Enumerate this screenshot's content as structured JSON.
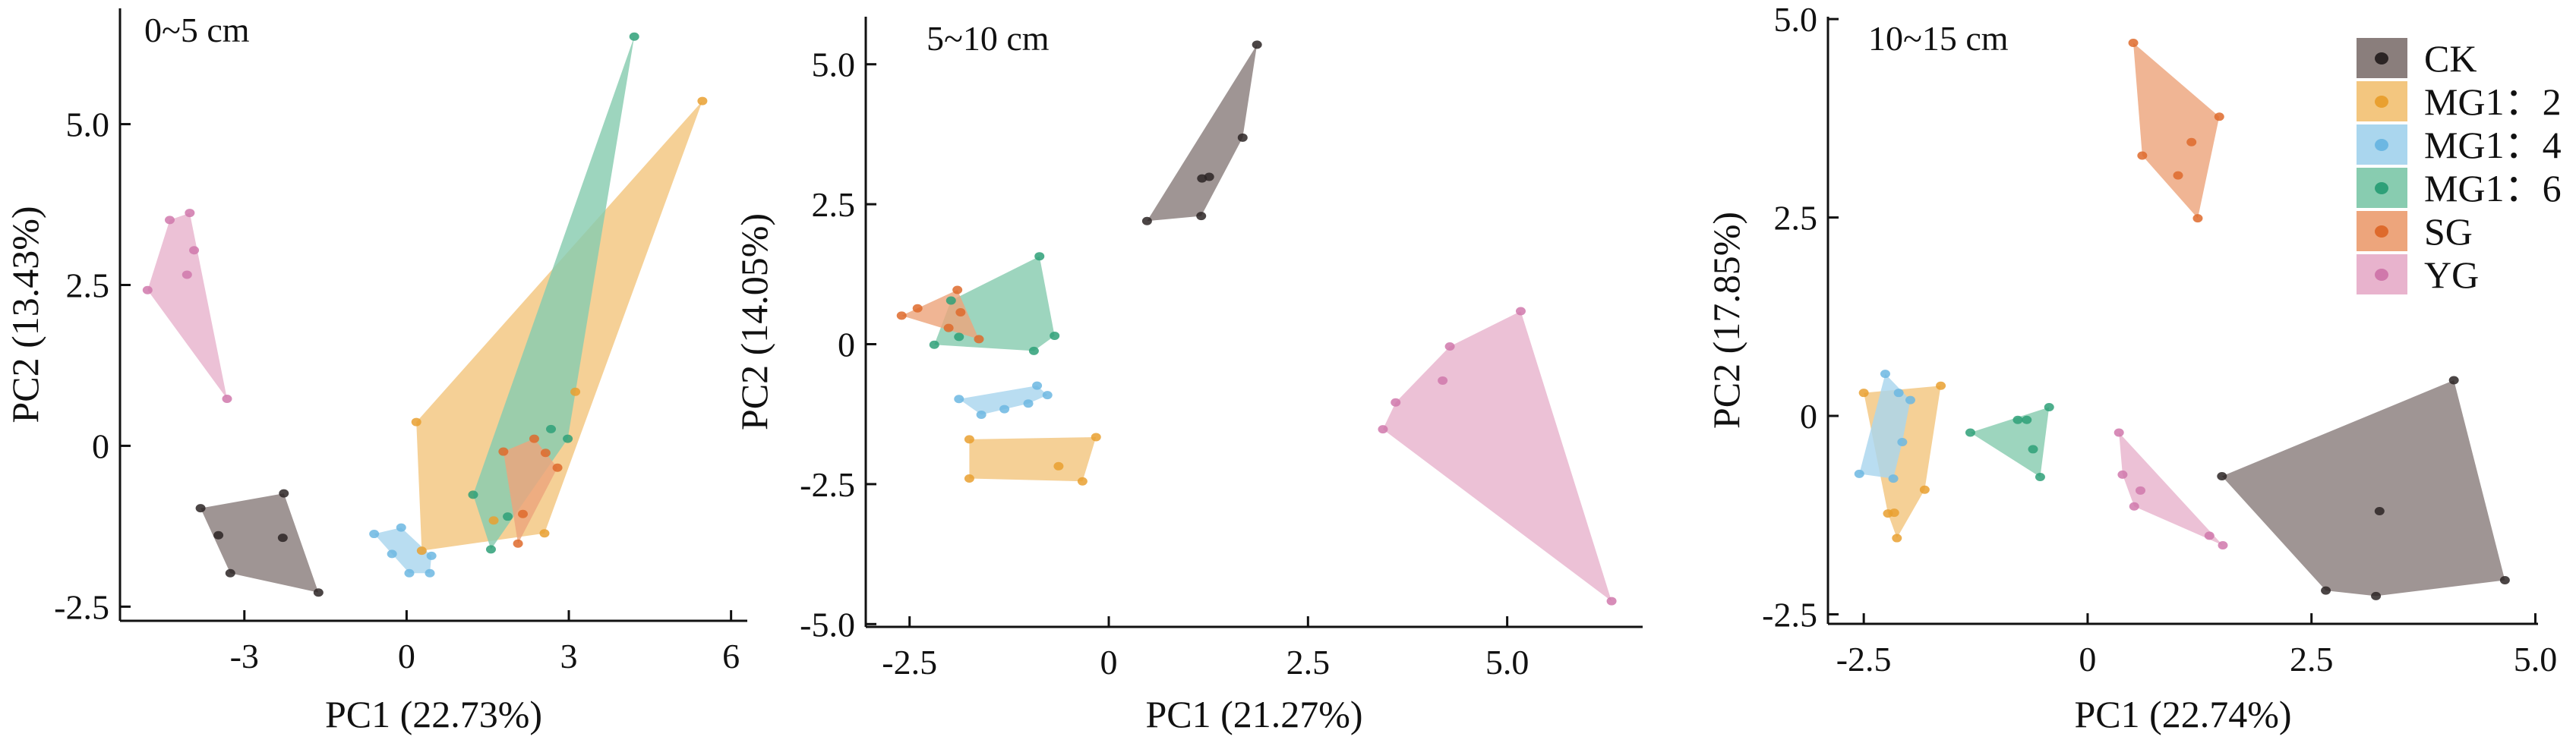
{
  "chart_data": [
    {
      "type": "scatter",
      "title": "0~5 cm",
      "xlabel": "PC1 (22.73%)",
      "ylabel": "PC2 (13.43%)",
      "xlim": [
        -5.3,
        6.3
      ],
      "ylim": [
        -2.72,
        6.8
      ],
      "xticks": [
        {
          "v": -3,
          "label": "-3"
        },
        {
          "v": 0,
          "label": "0"
        },
        {
          "v": 3,
          "label": "3"
        },
        {
          "v": 6,
          "label": "6"
        }
      ],
      "yticks": [
        {
          "v": 5,
          "label": "5.0"
        },
        {
          "v": 2.5,
          "label": "2.5"
        },
        {
          "v": 0,
          "label": "0"
        },
        {
          "v": -2.5,
          "label": "-2.5"
        }
      ],
      "series": [
        {
          "name": "CK",
          "points": [
            [
              -3.81,
              -0.97
            ],
            [
              -2.27,
              -0.74
            ],
            [
              -3.48,
              -1.39
            ],
            [
              -2.29,
              -1.43
            ],
            [
              -3.26,
              -1.98
            ],
            [
              -1.63,
              -2.28
            ]
          ]
        },
        {
          "name": "MG1：2",
          "points": [
            [
              0.18,
              0.37
            ],
            [
              5.47,
              5.36
            ],
            [
              3.12,
              0.84
            ],
            [
              2.55,
              -1.36
            ],
            [
              0.28,
              -1.63
            ],
            [
              1.61,
              -1.16
            ]
          ]
        },
        {
          "name": "MG1：4",
          "points": [
            [
              -0.6,
              -1.37
            ],
            [
              -0.1,
              -1.27
            ],
            [
              -0.27,
              -1.68
            ],
            [
              0.46,
              -1.71
            ],
            [
              0.05,
              -1.98
            ],
            [
              0.43,
              -1.98
            ]
          ]
        },
        {
          "name": "MG1：6",
          "points": [
            [
              4.21,
              6.36
            ],
            [
              2.98,
              0.11
            ],
            [
              2.67,
              0.26
            ],
            [
              1.23,
              -0.76
            ],
            [
              1.56,
              -1.61
            ],
            [
              1.87,
              -1.1
            ]
          ]
        },
        {
          "name": "SG",
          "points": [
            [
              1.79,
              -0.09
            ],
            [
              2.36,
              0.11
            ],
            [
              2.57,
              -0.11
            ],
            [
              2.79,
              -0.34
            ],
            [
              2.15,
              -1.06
            ],
            [
              2.06,
              -1.52
            ]
          ]
        },
        {
          "name": "YG",
          "points": [
            [
              -4.79,
              2.42
            ],
            [
              -4.38,
              3.51
            ],
            [
              -4.01,
              3.62
            ],
            [
              -3.93,
              3.04
            ],
            [
              -4.06,
              2.66
            ],
            [
              -3.32,
              0.73
            ]
          ]
        }
      ]
    },
    {
      "type": "scatter",
      "title": "5~10 cm",
      "xlabel": "PC1 (21.27%)",
      "ylabel": "PC2 (14.05%)",
      "xlim": [
        -3.05,
        6.7
      ],
      "ylim": [
        -5.05,
        5.85
      ],
      "xticks": [
        {
          "v": -2.5,
          "label": "-2.5"
        },
        {
          "v": 0,
          "label": "0"
        },
        {
          "v": 2.5,
          "label": "2.5"
        },
        {
          "v": 5,
          "label": "5.0"
        }
      ],
      "yticks": [
        {
          "v": 5,
          "label": "5.0"
        },
        {
          "v": 2.5,
          "label": "2.5"
        },
        {
          "v": 0,
          "label": "0"
        },
        {
          "v": -2.5,
          "label": "-2.5"
        },
        {
          "v": -5,
          "label": "-5.0"
        }
      ],
      "series": [
        {
          "name": "CK",
          "points": [
            [
              1.86,
              5.35
            ],
            [
              1.68,
              3.69
            ],
            [
              1.17,
              2.96
            ],
            [
              1.26,
              2.99
            ],
            [
              1.16,
              2.29
            ],
            [
              0.48,
              2.2
            ]
          ]
        },
        {
          "name": "MG1：2",
          "points": [
            [
              -1.75,
              -1.7
            ],
            [
              -0.16,
              -1.66
            ],
            [
              -0.63,
              -2.18
            ],
            [
              -0.33,
              -2.45
            ],
            [
              -1.75,
              -2.4
            ]
          ]
        },
        {
          "name": "MG1：4",
          "points": [
            [
              -1.88,
              -0.98
            ],
            [
              -0.9,
              -0.74
            ],
            [
              -0.77,
              -0.91
            ],
            [
              -1.01,
              -1.06
            ],
            [
              -1.31,
              -1.16
            ],
            [
              -1.6,
              -1.26
            ]
          ]
        },
        {
          "name": "MG1：6",
          "points": [
            [
              -0.87,
              1.57
            ],
            [
              -0.68,
              0.15
            ],
            [
              -0.94,
              -0.12
            ],
            [
              -2.19,
              -0.01
            ],
            [
              -1.88,
              0.13
            ],
            [
              -1.98,
              0.78
            ]
          ]
        },
        {
          "name": "SG",
          "points": [
            [
              -2.6,
              0.51
            ],
            [
              -2.4,
              0.64
            ],
            [
              -1.9,
              0.97
            ],
            [
              -1.86,
              0.57
            ],
            [
              -2.01,
              0.29
            ],
            [
              -1.63,
              0.09
            ]
          ]
        },
        {
          "name": "YG",
          "points": [
            [
              5.17,
              0.59
            ],
            [
              4.28,
              -0.04
            ],
            [
              4.19,
              -0.65
            ],
            [
              3.6,
              -1.04
            ],
            [
              3.44,
              -1.52
            ],
            [
              6.31,
              -4.59
            ]
          ]
        }
      ]
    },
    {
      "type": "scatter",
      "title": "10~15 cm",
      "xlabel": "PC1 (22.74%)",
      "ylabel": "PC2 (17.85%)",
      "xlim": [
        -2.9,
        5.03
      ],
      "ylim": [
        -2.62,
        5.03
      ],
      "xticks": [
        {
          "v": -2.5,
          "label": "-2.5"
        },
        {
          "v": 0,
          "label": "0"
        },
        {
          "v": 2.5,
          "label": "2.5"
        },
        {
          "v": 5,
          "label": "5.0"
        }
      ],
      "yticks": [
        {
          "v": 5,
          "label": "5.0"
        },
        {
          "v": 2.5,
          "label": "2.5"
        },
        {
          "v": 0,
          "label": "0"
        },
        {
          "v": -2.5,
          "label": "-2.5"
        }
      ],
      "series": [
        {
          "name": "CK",
          "points": [
            [
              1.5,
              -0.76
            ],
            [
              4.09,
              0.45
            ],
            [
              3.26,
              -1.2
            ],
            [
              4.66,
              -2.07
            ],
            [
              3.22,
              -2.27
            ],
            [
              2.66,
              -2.2
            ]
          ]
        },
        {
          "name": "MG1：2",
          "points": [
            [
              -2.5,
              0.29
            ],
            [
              -1.64,
              0.38
            ],
            [
              -1.82,
              -0.93
            ],
            [
              -2.16,
              -1.22
            ],
            [
              -2.23,
              -1.23
            ],
            [
              -2.13,
              -1.54
            ]
          ]
        },
        {
          "name": "MG1：4",
          "points": [
            [
              -2.26,
              0.53
            ],
            [
              -2.11,
              0.29
            ],
            [
              -1.98,
              0.2
            ],
            [
              -2.07,
              -0.33
            ],
            [
              -2.17,
              -0.79
            ],
            [
              -2.55,
              -0.73
            ]
          ]
        },
        {
          "name": "MG1：6",
          "points": [
            [
              -1.31,
              -0.21
            ],
            [
              -0.78,
              -0.05
            ],
            [
              -0.68,
              -0.05
            ],
            [
              -0.43,
              0.11
            ],
            [
              -0.61,
              -0.42
            ],
            [
              -0.53,
              -0.77
            ]
          ]
        },
        {
          "name": "SG",
          "points": [
            [
              0.51,
              4.7
            ],
            [
              1.47,
              3.77
            ],
            [
              1.16,
              3.45
            ],
            [
              0.61,
              3.28
            ],
            [
              1.01,
              3.03
            ],
            [
              1.23,
              2.49
            ]
          ]
        },
        {
          "name": "YG",
          "points": [
            [
              0.35,
              -0.21
            ],
            [
              0.39,
              -0.74
            ],
            [
              0.59,
              -0.94
            ],
            [
              0.52,
              -1.14
            ],
            [
              1.36,
              -1.51
            ],
            [
              1.51,
              -1.63
            ]
          ]
        }
      ]
    }
  ],
  "legend": {
    "placement": "top-right",
    "items": [
      {
        "name": "CK",
        "point": "#2b2424",
        "fill": "#8a7e7c"
      },
      {
        "name": "MG1：2",
        "point": "#e9a030",
        "fill": "#f3c67f"
      },
      {
        "name": "MG1：4",
        "point": "#6cb7e2",
        "fill": "#aad6ee"
      },
      {
        "name": "MG1：6",
        "point": "#2ea078",
        "fill": "#88ccb0"
      },
      {
        "name": "SG",
        "point": "#de6a2c",
        "fill": "#eda57c"
      },
      {
        "name": "YG",
        "point": "#d078ab",
        "fill": "#e8b3cd"
      }
    ]
  }
}
